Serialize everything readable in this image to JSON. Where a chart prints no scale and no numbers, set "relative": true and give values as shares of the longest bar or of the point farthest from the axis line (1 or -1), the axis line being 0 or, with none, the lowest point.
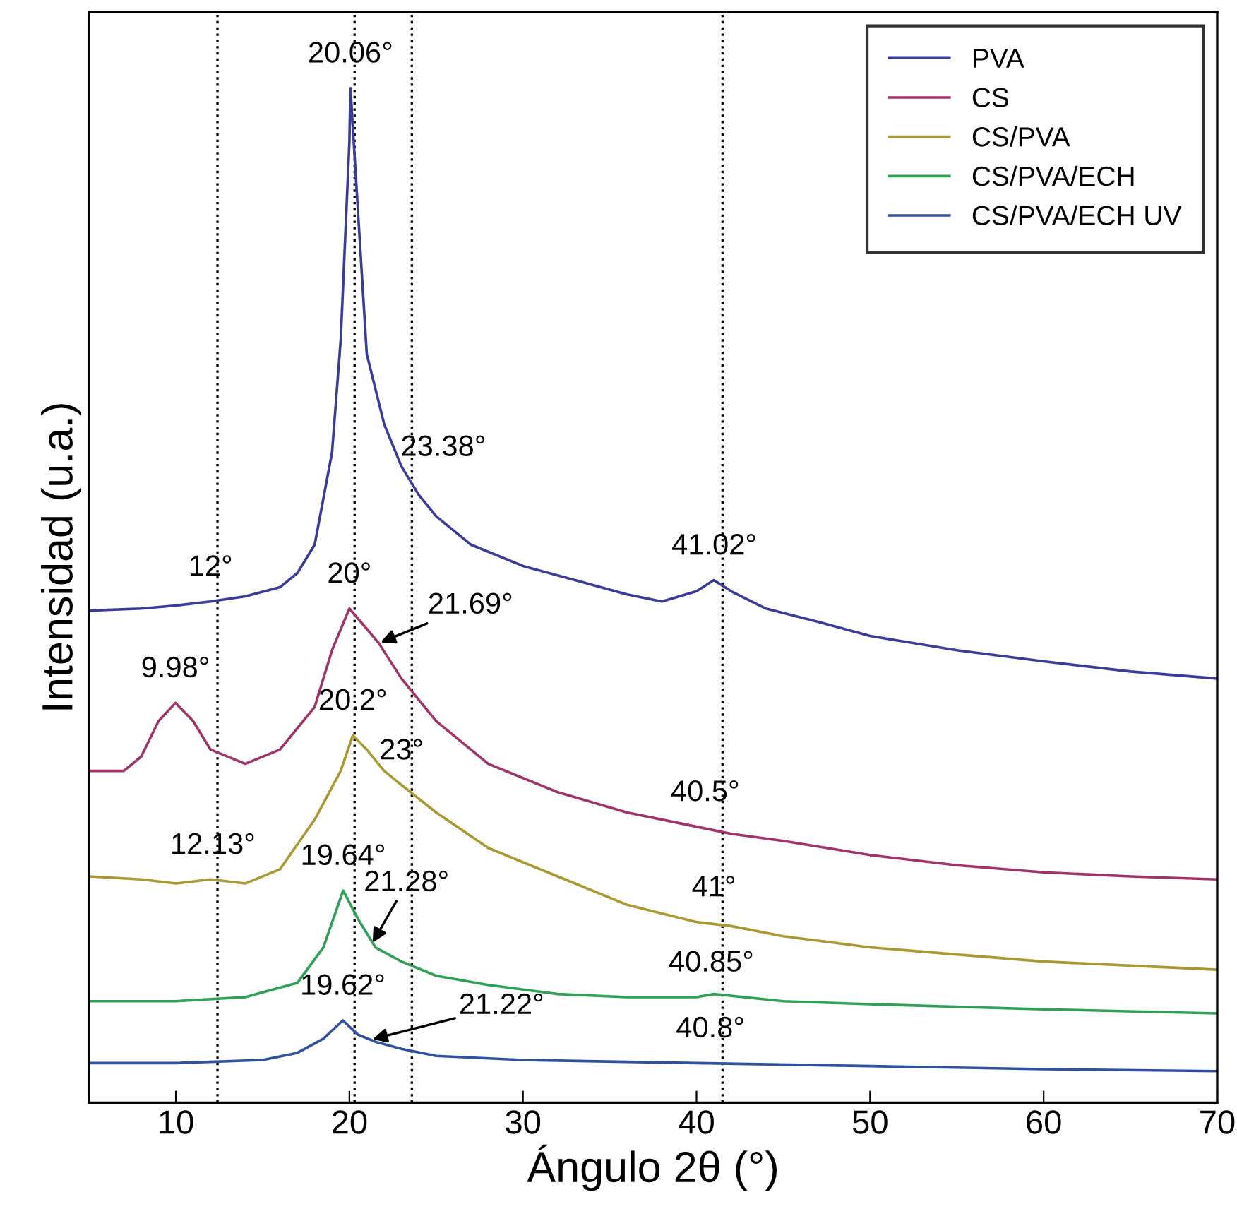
{
  "chart_data": {
    "type": "line",
    "relative": true,
    "xlabel": "Ángulo 2θ (°)",
    "ylabel": "Intensidad (u.a.)",
    "xlim": [
      5,
      70
    ],
    "xticks": [
      10,
      20,
      30,
      40,
      50,
      60,
      70
    ],
    "grid": false,
    "legend": "top right",
    "line_style": "solid",
    "marker": "none",
    "series": [
      {
        "name": "PVA",
        "color": "#3b3b9c",
        "x": [
          5,
          8,
          10,
          12,
          14,
          16,
          17,
          18,
          19,
          19.5,
          20,
          20.06,
          20.5,
          21,
          22,
          23,
          24,
          25,
          27,
          30,
          33,
          36,
          38,
          40,
          41,
          42,
          44,
          47,
          50,
          55,
          60,
          65,
          70
        ],
        "values": [
          0.485,
          0.487,
          0.49,
          0.494,
          0.499,
          0.508,
          0.522,
          0.55,
          0.641,
          0.752,
          0.947,
          1,
          0.877,
          0.738,
          0.669,
          0.627,
          0.599,
          0.578,
          0.55,
          0.529,
          0.515,
          0.501,
          0.494,
          0.504,
          0.515,
          0.504,
          0.487,
          0.474,
          0.46,
          0.446,
          0.435,
          0.425,
          0.418
        ]
      },
      {
        "name": "CS",
        "color": "#a0336a",
        "x": [
          5,
          7,
          8,
          9,
          9.98,
          11,
          12,
          14,
          16,
          18,
          19,
          20,
          21,
          21.69,
          23,
          25,
          28,
          32,
          36,
          40,
          42,
          45,
          50,
          55,
          60,
          65,
          70
        ],
        "values": [
          0.327,
          0.327,
          0.341,
          0.376,
          0.394,
          0.376,
          0.348,
          0.334,
          0.348,
          0.39,
          0.446,
          0.487,
          0.467,
          0.453,
          0.418,
          0.376,
          0.334,
          0.306,
          0.286,
          0.272,
          0.265,
          0.258,
          0.244,
          0.234,
          0.227,
          0.223,
          0.22
        ]
      },
      {
        "name": "CS/PVA",
        "color": "#a89a30",
        "x": [
          5,
          8,
          10,
          12,
          14,
          16,
          18,
          19.5,
          20.2,
          21,
          22,
          23,
          25,
          28,
          32,
          36,
          40,
          42,
          45,
          50,
          55,
          60,
          65,
          70
        ],
        "values": [
          0.223,
          0.22,
          0.216,
          0.22,
          0.216,
          0.23,
          0.279,
          0.327,
          0.362,
          0.348,
          0.327,
          0.313,
          0.286,
          0.251,
          0.223,
          0.195,
          0.178,
          0.174,
          0.164,
          0.153,
          0.146,
          0.139,
          0.135,
          0.131
        ]
      },
      {
        "name": "CS/PVA/ECH",
        "color": "#2fa055",
        "x": [
          5,
          10,
          14,
          17,
          18.5,
          19.64,
          20.5,
          21.5,
          23,
          25,
          28,
          32,
          36,
          40,
          41,
          45,
          50,
          60,
          70
        ],
        "values": [
          0.1,
          0.1,
          0.104,
          0.118,
          0.153,
          0.209,
          0.181,
          0.153,
          0.139,
          0.125,
          0.116,
          0.107,
          0.104,
          0.104,
          0.107,
          0.1,
          0.097,
          0.092,
          0.088
        ]
      },
      {
        "name": "CS/PVA/ECH UV",
        "color": "#3050a0",
        "x": [
          5,
          10,
          15,
          17,
          18.5,
          19.62,
          20.5,
          21.5,
          23,
          25,
          30,
          40,
          50,
          60,
          70
        ],
        "values": [
          0.039,
          0.039,
          0.042,
          0.049,
          0.063,
          0.081,
          0.067,
          0.06,
          0.053,
          0.046,
          0.042,
          0.039,
          0.036,
          0.033,
          0.031
        ]
      }
    ],
    "ref_lines": [
      {
        "axis": "x",
        "value": 12.4,
        "color": "#000000",
        "line_style": "dotted"
      },
      {
        "axis": "x",
        "value": 20.3,
        "color": "#000000",
        "line_style": "dotted"
      },
      {
        "axis": "x",
        "value": 23.6,
        "color": "#000000",
        "line_style": "dotted"
      },
      {
        "axis": "x",
        "value": 41.5,
        "color": "#000000",
        "line_style": "dotted"
      }
    ],
    "annotations": [
      {
        "text": "20.06°",
        "x": 20.06,
        "y": 1
      },
      {
        "text": "12°",
        "x": 12,
        "y": 0.494
      },
      {
        "text": "23.38°",
        "x": 23.38,
        "y": 0.616
      },
      {
        "text": "41.02°",
        "x": 41.02,
        "y": 0.515
      },
      {
        "text": "9.98°",
        "x": 9.98,
        "y": 0.394
      },
      {
        "text": "20°",
        "x": 20,
        "y": 0.487
      },
      {
        "text": "21.69°",
        "x": 21.69,
        "y": 0.453
      },
      {
        "text": "40.5°",
        "x": 40.5,
        "y": 0.272
      },
      {
        "text": "12.13°",
        "x": 12.13,
        "y": 0.22
      },
      {
        "text": "20.2°",
        "x": 20.2,
        "y": 0.362
      },
      {
        "text": "23°",
        "x": 23,
        "y": 0.313
      },
      {
        "text": "41°",
        "x": 41,
        "y": 0.178
      },
      {
        "text": "19.64°",
        "x": 19.64,
        "y": 0.209
      },
      {
        "text": "21.28°",
        "x": 21.28,
        "y": 0.156
      },
      {
        "text": "40.85°",
        "x": 40.85,
        "y": 0.104
      },
      {
        "text": "19.62°",
        "x": 19.62,
        "y": 0.081
      },
      {
        "text": "21.22°",
        "x": 21.22,
        "y": 0.062
      },
      {
        "text": "40.8°",
        "x": 40.8,
        "y": 0.039
      }
    ]
  }
}
